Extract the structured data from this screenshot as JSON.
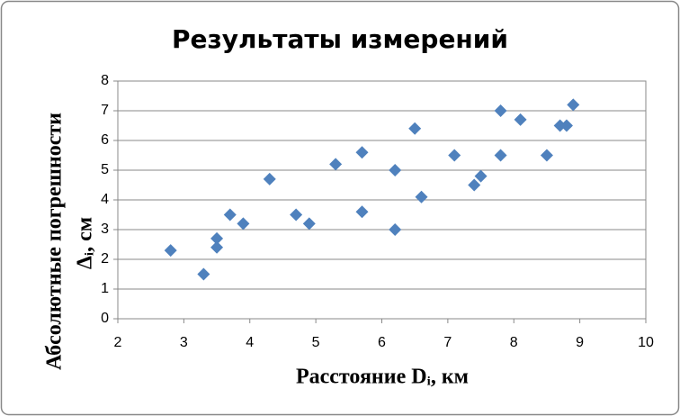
{
  "chart_data": {
    "type": "scatter",
    "title": "Результаты измерений",
    "xlabel": "Расстояние Dᵢ, км",
    "ylabel": [
      "Абсолютные погрешности",
      "Δᵢ, см"
    ],
    "series": [
      {
        "color": "#4f81bd",
        "x": [
          2.8,
          3.3,
          3.5,
          3.5,
          3.7,
          3.9,
          4.3,
          4.7,
          4.9,
          5.3,
          5.7,
          5.7,
          6.2,
          6.2,
          6.5,
          6.6,
          7.1,
          7.4,
          7.5,
          7.8,
          7.8,
          8.1,
          8.5,
          8.7,
          8.8,
          8.9
        ],
        "values": [
          2.3,
          1.5,
          2.7,
          2.4,
          3.5,
          3.2,
          4.7,
          3.5,
          3.2,
          5.2,
          5.6,
          3.6,
          5.0,
          3.0,
          6.4,
          4.1,
          5.5,
          4.5,
          4.8,
          7.0,
          5.5,
          6.7,
          5.5,
          6.5,
          6.5,
          7.2
        ]
      }
    ],
    "xlim": [
      2,
      10
    ],
    "xticks": [
      2,
      3,
      4,
      5,
      6,
      7,
      8,
      9,
      10
    ],
    "ylim": [
      0,
      8
    ],
    "yticks": [
      0,
      1,
      2,
      3,
      4,
      5,
      6,
      7,
      8
    ],
    "grid": true
  }
}
